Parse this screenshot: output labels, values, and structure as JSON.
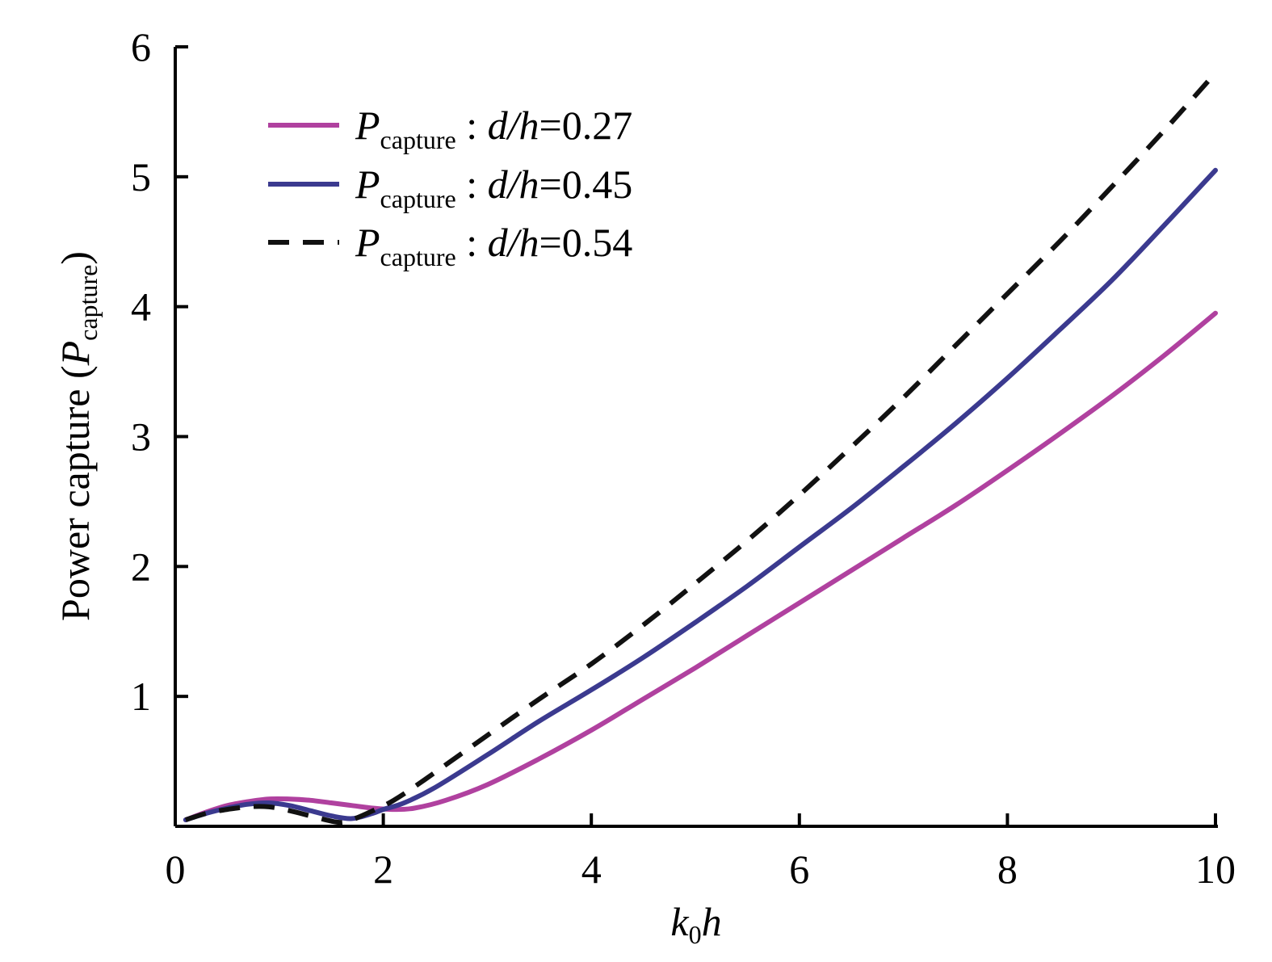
{
  "chart_data": {
    "type": "line",
    "title": "",
    "xlabel": {
      "main": "k",
      "sub": "0",
      "tail": "h"
    },
    "ylabel": {
      "prefix": "Power capture (",
      "var": "P",
      "sub": "capture",
      "suffix": ")"
    },
    "xlim": [
      0,
      10
    ],
    "ylim": [
      0,
      6
    ],
    "xticks": [
      0,
      2,
      4,
      6,
      8,
      10
    ],
    "xtick_labels": [
      "0",
      "2",
      "4",
      "6",
      "8",
      "10"
    ],
    "yticks": [
      1,
      2,
      3,
      4,
      5,
      6
    ],
    "ytick_labels": [
      "1",
      "2",
      "3",
      "4",
      "5",
      "6"
    ],
    "grid": false,
    "legend_position": "top-left",
    "series": [
      {
        "name": "P_capture : d/h=0.27",
        "legend": {
          "var": "P",
          "sub": "capture",
          "sep": " : ",
          "expr": "d/h",
          "eq": "=",
          "value": "0.27"
        },
        "color": "#b0419f",
        "dash": "solid",
        "x": [
          0.1,
          0.3,
          0.5,
          0.7,
          0.9,
          1.1,
          1.3,
          1.5,
          1.7,
          1.9,
          2.1,
          2.3,
          2.6,
          3.0,
          3.5,
          4.0,
          4.5,
          5.0,
          5.5,
          6.0,
          6.5,
          7.0,
          7.5,
          8.0,
          8.5,
          9.0,
          9.5,
          10.0
        ],
        "y": [
          0.05,
          0.11,
          0.16,
          0.19,
          0.21,
          0.21,
          0.2,
          0.18,
          0.16,
          0.14,
          0.13,
          0.14,
          0.2,
          0.32,
          0.52,
          0.74,
          0.98,
          1.22,
          1.47,
          1.72,
          1.97,
          2.22,
          2.47,
          2.74,
          3.02,
          3.31,
          3.62,
          3.95
        ]
      },
      {
        "name": "P_capture : d/h=0.45",
        "legend": {
          "var": "P",
          "sub": "capture",
          "sep": " : ",
          "expr": "d/h",
          "eq": "=",
          "value": "0.45"
        },
        "color": "#3b3a8f",
        "dash": "solid",
        "x": [
          0.1,
          0.3,
          0.5,
          0.7,
          0.9,
          1.1,
          1.3,
          1.5,
          1.7,
          1.9,
          2.0,
          2.2,
          2.5,
          3.0,
          3.5,
          4.0,
          4.5,
          5.0,
          5.5,
          6.0,
          6.5,
          7.0,
          7.5,
          8.0,
          8.5,
          9.0,
          9.5,
          10.0
        ],
        "y": [
          0.05,
          0.1,
          0.14,
          0.17,
          0.18,
          0.16,
          0.12,
          0.08,
          0.06,
          0.1,
          0.13,
          0.18,
          0.3,
          0.55,
          0.81,
          1.05,
          1.3,
          1.57,
          1.85,
          2.15,
          2.45,
          2.77,
          3.1,
          3.45,
          3.82,
          4.2,
          4.62,
          5.05
        ]
      },
      {
        "name": "P_capture : d/h=0.54",
        "legend": {
          "var": "P",
          "sub": "capture",
          "sep": " : ",
          "expr": "d/h",
          "eq": "=",
          "value": "0.54"
        },
        "color": "#111111",
        "dash": "dashed",
        "x": [
          0.1,
          0.3,
          0.5,
          0.7,
          0.9,
          1.1,
          1.3,
          1.5,
          1.6,
          1.7,
          1.9,
          2.1,
          2.4,
          3.0,
          3.5,
          4.0,
          4.5,
          5.0,
          5.5,
          6.0,
          6.5,
          7.0,
          7.5,
          8.0,
          8.5,
          9.0,
          9.5,
          10.0
        ],
        "y": [
          0.05,
          0.1,
          0.13,
          0.15,
          0.15,
          0.12,
          0.08,
          0.04,
          0.03,
          0.05,
          0.12,
          0.2,
          0.36,
          0.7,
          0.98,
          1.25,
          1.55,
          1.87,
          2.2,
          2.55,
          2.92,
          3.3,
          3.7,
          4.1,
          4.5,
          4.92,
          5.35,
          5.8
        ]
      }
    ]
  }
}
